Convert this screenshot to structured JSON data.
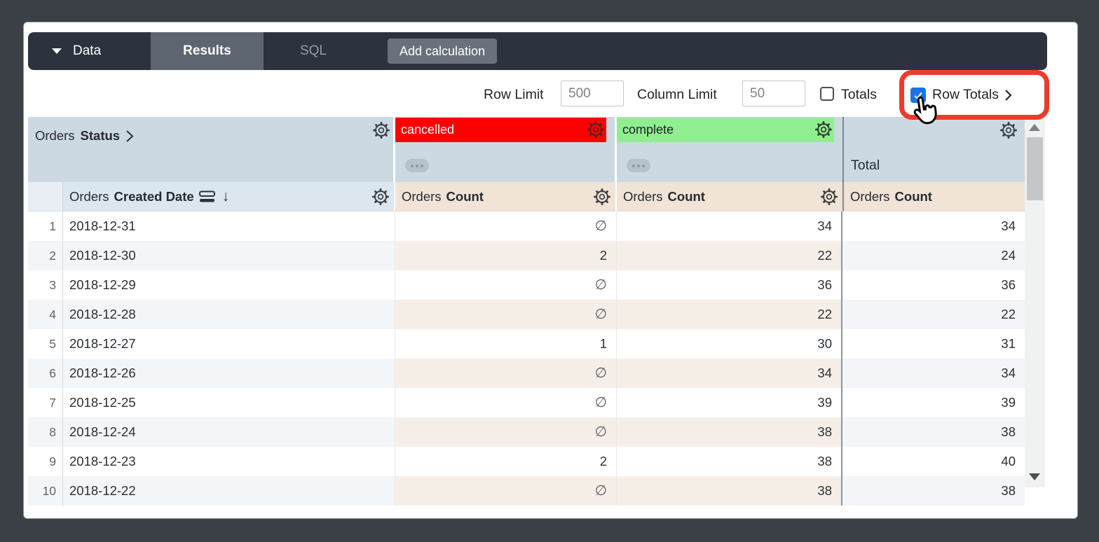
{
  "tabbar": {
    "data_label": "Data",
    "results_label": "Results",
    "sql_label": "SQL",
    "add_calculation_label": "Add calculation"
  },
  "toolbar": {
    "row_limit_label": "Row Limit",
    "row_limit_value": "500",
    "column_limit_label": "Column Limit",
    "column_limit_value": "50",
    "totals_label": "Totals",
    "totals_checked": false,
    "row_totals_label": "Row Totals",
    "row_totals_checked": true
  },
  "pivot_header": {
    "dimension_prefix": "Orders",
    "dimension_name": "Status",
    "columns": [
      {
        "label": "cancelled",
        "bg": "#ff0000",
        "text_color": "#ffffff"
      },
      {
        "label": "complete",
        "bg": "#90ee90",
        "text_color": "#1c2126"
      }
    ],
    "total_label": "Total"
  },
  "column_headers": {
    "date_prefix": "Orders",
    "date_name": "Created Date",
    "measure_prefix": "Orders",
    "measure_name": "Count"
  },
  "table": {
    "rows": [
      {
        "num": "1",
        "date": "2018-12-31",
        "cancelled": "∅",
        "complete": "34",
        "total": "34"
      },
      {
        "num": "2",
        "date": "2018-12-30",
        "cancelled": "2",
        "complete": "22",
        "total": "24"
      },
      {
        "num": "3",
        "date": "2018-12-29",
        "cancelled": "∅",
        "complete": "36",
        "total": "36"
      },
      {
        "num": "4",
        "date": "2018-12-28",
        "cancelled": "∅",
        "complete": "22",
        "total": "22"
      },
      {
        "num": "5",
        "date": "2018-12-27",
        "cancelled": "1",
        "complete": "30",
        "total": "31"
      },
      {
        "num": "6",
        "date": "2018-12-26",
        "cancelled": "∅",
        "complete": "34",
        "total": "34"
      },
      {
        "num": "7",
        "date": "2018-12-25",
        "cancelled": "∅",
        "complete": "39",
        "total": "39"
      },
      {
        "num": "8",
        "date": "2018-12-24",
        "cancelled": "∅",
        "complete": "38",
        "total": "38"
      },
      {
        "num": "9",
        "date": "2018-12-23",
        "cancelled": "2",
        "complete": "38",
        "total": "40"
      },
      {
        "num": "10",
        "date": "2018-12-22",
        "cancelled": "∅",
        "complete": "38",
        "total": "38"
      }
    ]
  },
  "colors": {
    "tabbar_bg": "#2c333f",
    "results_tab_bg": "#5d6571",
    "pivot_header_bg": "#ccd8e2",
    "measure_header_bg": "#f1e3d6",
    "cancelled_banner": "#ff0000",
    "complete_banner": "#90ee90",
    "highlight_red": "#ee3a2b",
    "checkbox_blue": "#1a73e8",
    "even_row_tint": "#f6efe8"
  }
}
